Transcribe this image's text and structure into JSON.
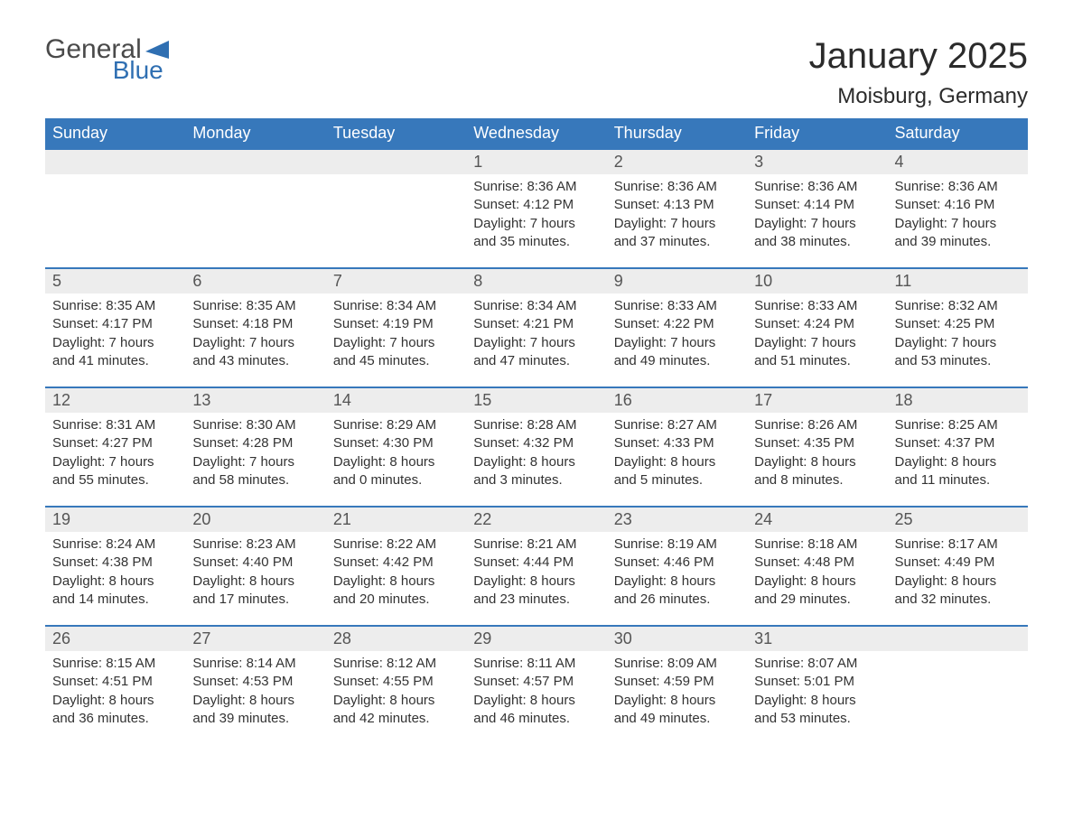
{
  "logo": {
    "word1": "General",
    "word2": "Blue"
  },
  "title": "January 2025",
  "location": "Moisburg, Germany",
  "colors": {
    "header_bg": "#3778bb",
    "header_text": "#ffffff",
    "daynum_bg": "#ededed",
    "daynum_text": "#555555",
    "body_text": "#333333",
    "logo_general": "#4a4a4a",
    "logo_blue": "#2f6fb2",
    "row_border": "#3778bb"
  },
  "daysOfWeek": [
    "Sunday",
    "Monday",
    "Tuesday",
    "Wednesday",
    "Thursday",
    "Friday",
    "Saturday"
  ],
  "labels": {
    "sunrise": "Sunrise:",
    "sunset": "Sunset:",
    "daylight": "Daylight:"
  },
  "weeks": [
    [
      null,
      null,
      null,
      {
        "n": "1",
        "sunrise": "8:36 AM",
        "sunset": "4:12 PM",
        "dl1": "7 hours",
        "dl2": "and 35 minutes."
      },
      {
        "n": "2",
        "sunrise": "8:36 AM",
        "sunset": "4:13 PM",
        "dl1": "7 hours",
        "dl2": "and 37 minutes."
      },
      {
        "n": "3",
        "sunrise": "8:36 AM",
        "sunset": "4:14 PM",
        "dl1": "7 hours",
        "dl2": "and 38 minutes."
      },
      {
        "n": "4",
        "sunrise": "8:36 AM",
        "sunset": "4:16 PM",
        "dl1": "7 hours",
        "dl2": "and 39 minutes."
      }
    ],
    [
      {
        "n": "5",
        "sunrise": "8:35 AM",
        "sunset": "4:17 PM",
        "dl1": "7 hours",
        "dl2": "and 41 minutes."
      },
      {
        "n": "6",
        "sunrise": "8:35 AM",
        "sunset": "4:18 PM",
        "dl1": "7 hours",
        "dl2": "and 43 minutes."
      },
      {
        "n": "7",
        "sunrise": "8:34 AM",
        "sunset": "4:19 PM",
        "dl1": "7 hours",
        "dl2": "and 45 minutes."
      },
      {
        "n": "8",
        "sunrise": "8:34 AM",
        "sunset": "4:21 PM",
        "dl1": "7 hours",
        "dl2": "and 47 minutes."
      },
      {
        "n": "9",
        "sunrise": "8:33 AM",
        "sunset": "4:22 PM",
        "dl1": "7 hours",
        "dl2": "and 49 minutes."
      },
      {
        "n": "10",
        "sunrise": "8:33 AM",
        "sunset": "4:24 PM",
        "dl1": "7 hours",
        "dl2": "and 51 minutes."
      },
      {
        "n": "11",
        "sunrise": "8:32 AM",
        "sunset": "4:25 PM",
        "dl1": "7 hours",
        "dl2": "and 53 minutes."
      }
    ],
    [
      {
        "n": "12",
        "sunrise": "8:31 AM",
        "sunset": "4:27 PM",
        "dl1": "7 hours",
        "dl2": "and 55 minutes."
      },
      {
        "n": "13",
        "sunrise": "8:30 AM",
        "sunset": "4:28 PM",
        "dl1": "7 hours",
        "dl2": "and 58 minutes."
      },
      {
        "n": "14",
        "sunrise": "8:29 AM",
        "sunset": "4:30 PM",
        "dl1": "8 hours",
        "dl2": "and 0 minutes."
      },
      {
        "n": "15",
        "sunrise": "8:28 AM",
        "sunset": "4:32 PM",
        "dl1": "8 hours",
        "dl2": "and 3 minutes."
      },
      {
        "n": "16",
        "sunrise": "8:27 AM",
        "sunset": "4:33 PM",
        "dl1": "8 hours",
        "dl2": "and 5 minutes."
      },
      {
        "n": "17",
        "sunrise": "8:26 AM",
        "sunset": "4:35 PM",
        "dl1": "8 hours",
        "dl2": "and 8 minutes."
      },
      {
        "n": "18",
        "sunrise": "8:25 AM",
        "sunset": "4:37 PM",
        "dl1": "8 hours",
        "dl2": "and 11 minutes."
      }
    ],
    [
      {
        "n": "19",
        "sunrise": "8:24 AM",
        "sunset": "4:38 PM",
        "dl1": "8 hours",
        "dl2": "and 14 minutes."
      },
      {
        "n": "20",
        "sunrise": "8:23 AM",
        "sunset": "4:40 PM",
        "dl1": "8 hours",
        "dl2": "and 17 minutes."
      },
      {
        "n": "21",
        "sunrise": "8:22 AM",
        "sunset": "4:42 PM",
        "dl1": "8 hours",
        "dl2": "and 20 minutes."
      },
      {
        "n": "22",
        "sunrise": "8:21 AM",
        "sunset": "4:44 PM",
        "dl1": "8 hours",
        "dl2": "and 23 minutes."
      },
      {
        "n": "23",
        "sunrise": "8:19 AM",
        "sunset": "4:46 PM",
        "dl1": "8 hours",
        "dl2": "and 26 minutes."
      },
      {
        "n": "24",
        "sunrise": "8:18 AM",
        "sunset": "4:48 PM",
        "dl1": "8 hours",
        "dl2": "and 29 minutes."
      },
      {
        "n": "25",
        "sunrise": "8:17 AM",
        "sunset": "4:49 PM",
        "dl1": "8 hours",
        "dl2": "and 32 minutes."
      }
    ],
    [
      {
        "n": "26",
        "sunrise": "8:15 AM",
        "sunset": "4:51 PM",
        "dl1": "8 hours",
        "dl2": "and 36 minutes."
      },
      {
        "n": "27",
        "sunrise": "8:14 AM",
        "sunset": "4:53 PM",
        "dl1": "8 hours",
        "dl2": "and 39 minutes."
      },
      {
        "n": "28",
        "sunrise": "8:12 AM",
        "sunset": "4:55 PM",
        "dl1": "8 hours",
        "dl2": "and 42 minutes."
      },
      {
        "n": "29",
        "sunrise": "8:11 AM",
        "sunset": "4:57 PM",
        "dl1": "8 hours",
        "dl2": "and 46 minutes."
      },
      {
        "n": "30",
        "sunrise": "8:09 AM",
        "sunset": "4:59 PM",
        "dl1": "8 hours",
        "dl2": "and 49 minutes."
      },
      {
        "n": "31",
        "sunrise": "8:07 AM",
        "sunset": "5:01 PM",
        "dl1": "8 hours",
        "dl2": "and 53 minutes."
      },
      null
    ]
  ]
}
